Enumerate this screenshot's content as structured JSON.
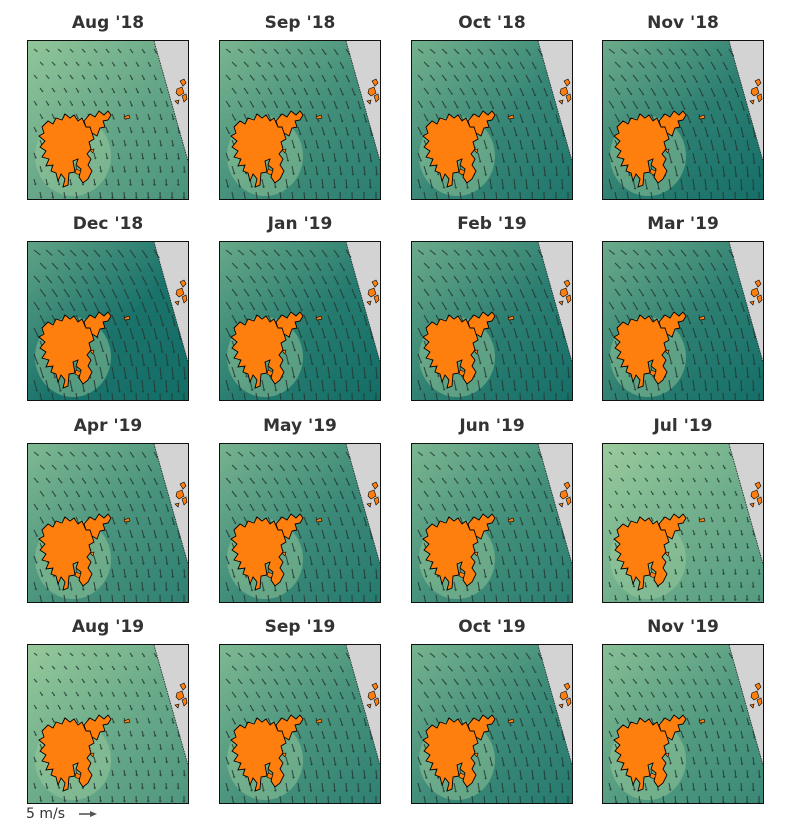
{
  "panels": [
    {
      "title": "Aug '18",
      "strength": 0.35
    },
    {
      "title": "Sep '18",
      "strength": 0.65
    },
    {
      "title": "Oct '18",
      "strength": 0.75
    },
    {
      "title": "Nov '18",
      "strength": 0.85
    },
    {
      "title": "Dec '18",
      "strength": 1.0
    },
    {
      "title": "Jan '19",
      "strength": 0.9
    },
    {
      "title": "Feb '19",
      "strength": 0.85
    },
    {
      "title": "Mar '19",
      "strength": 0.85
    },
    {
      "title": "Apr '19",
      "strength": 0.6
    },
    {
      "title": "May '19",
      "strength": 0.7
    },
    {
      "title": "Jun '19",
      "strength": 0.65
    },
    {
      "title": "Jul '19",
      "strength": 0.25
    },
    {
      "title": "Aug '19",
      "strength": 0.3
    },
    {
      "title": "Sep '19",
      "strength": 0.6
    },
    {
      "title": "Oct '19",
      "strength": 0.7
    },
    {
      "title": "Nov '19",
      "strength": 0.5
    }
  ],
  "legend": {
    "scale_label": "5 m/s"
  },
  "colors": {
    "land": "#ff7f0e",
    "land_edge": "#000000",
    "outside_domain": "#d3d3d3",
    "sea_light": "#9fcf9e",
    "sea_dark": "#136e68",
    "arrow": "#233a33"
  }
}
